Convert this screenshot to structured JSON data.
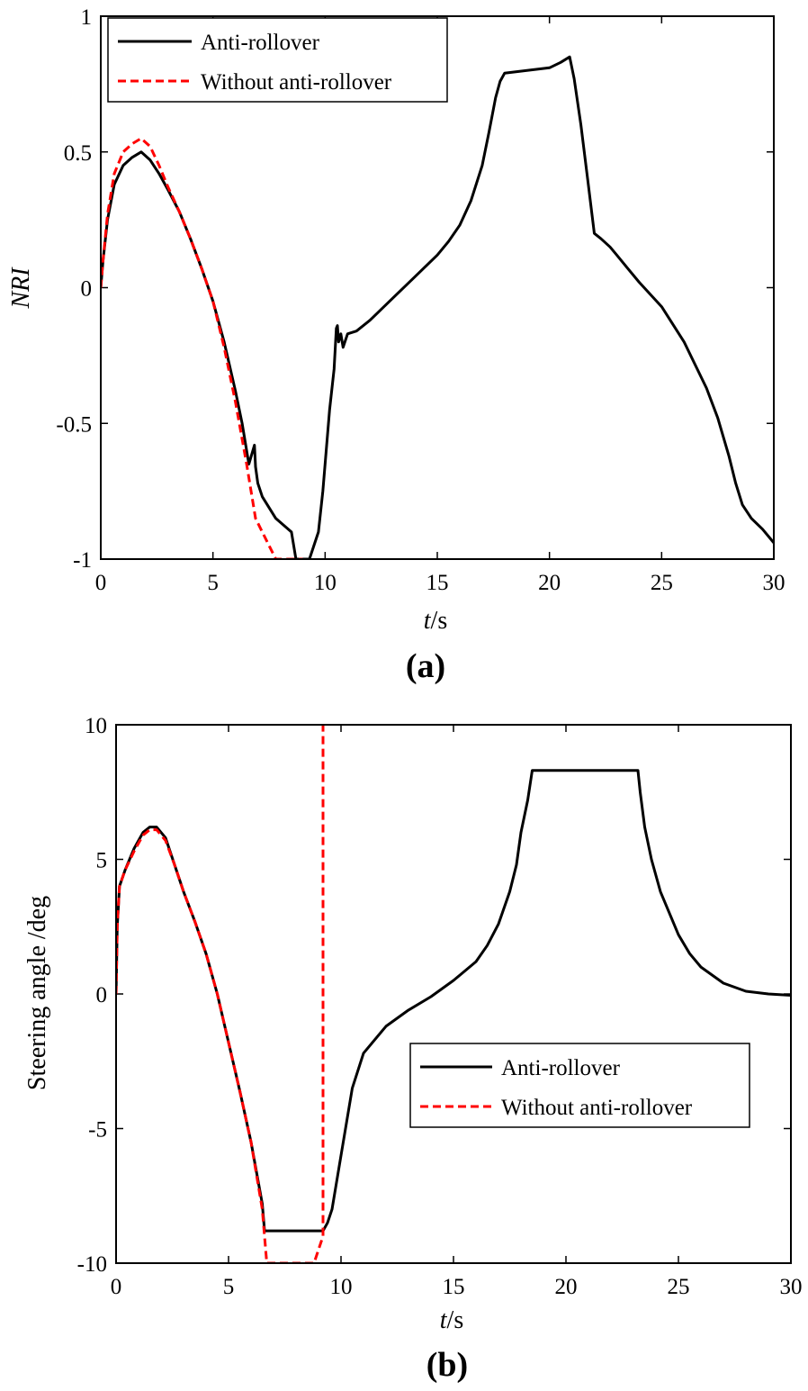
{
  "chart_data": [
    {
      "type": "line",
      "panel_label": "(a)",
      "xlabel": {
        "italic": "t",
        "rest": "/s"
      },
      "ylabel": "NRI",
      "xlim": [
        0,
        30
      ],
      "ylim": [
        -1,
        1
      ],
      "xticks": [
        "0",
        "5",
        "10",
        "15",
        "20",
        "25",
        "30"
      ],
      "yticks": [
        "-1",
        "-0.5",
        "0",
        "0.5",
        "1"
      ],
      "legend_position": "top-left",
      "series": [
        {
          "name": "Anti-rollover",
          "color": "#000000",
          "style": "solid",
          "x": [
            0,
            0.1,
            0.3,
            0.6,
            1.0,
            1.4,
            1.8,
            2.2,
            2.6,
            3.0,
            3.5,
            4.0,
            4.5,
            5.0,
            5.5,
            6.0,
            6.3,
            6.6,
            6.85,
            6.9,
            7.0,
            7.2,
            7.8,
            8.5,
            8.7,
            9.3,
            9.7,
            9.9,
            10.2,
            10.4,
            10.5,
            10.55,
            10.6,
            10.7,
            10.8,
            11.0,
            11.4,
            12.0,
            13.0,
            14.0,
            15.0,
            15.5,
            16.0,
            16.5,
            17.0,
            17.3,
            17.6,
            17.8,
            18.0,
            19.0,
            20.0,
            20.5,
            20.9,
            21.1,
            21.4,
            21.7,
            22.0,
            22.3,
            22.7,
            23.0,
            23.5,
            24.0,
            25.0,
            26.0,
            27.0,
            27.5,
            28.0,
            28.3,
            28.6,
            29.0,
            29.5,
            30.0
          ],
          "y": [
            0.0,
            0.1,
            0.25,
            0.38,
            0.45,
            0.48,
            0.5,
            0.47,
            0.42,
            0.36,
            0.28,
            0.18,
            0.07,
            -0.05,
            -0.2,
            -0.38,
            -0.5,
            -0.65,
            -0.58,
            -0.66,
            -0.72,
            -0.77,
            -0.85,
            -0.9,
            -1.0,
            -1.0,
            -0.9,
            -0.75,
            -0.45,
            -0.3,
            -0.15,
            -0.14,
            -0.2,
            -0.17,
            -0.22,
            -0.17,
            -0.16,
            -0.12,
            -0.04,
            0.04,
            0.12,
            0.17,
            0.23,
            0.32,
            0.45,
            0.57,
            0.7,
            0.76,
            0.79,
            0.8,
            0.81,
            0.83,
            0.85,
            0.77,
            0.6,
            0.4,
            0.2,
            0.18,
            0.15,
            0.12,
            0.07,
            0.02,
            -0.07,
            -0.2,
            -0.37,
            -0.48,
            -0.62,
            -0.72,
            -0.8,
            -0.85,
            -0.89,
            -0.94
          ]
        },
        {
          "name": "Without anti-rollover",
          "color": "#ff0000",
          "style": "dashed",
          "x": [
            0,
            0.1,
            0.3,
            0.6,
            1.0,
            1.4,
            1.8,
            2.2,
            2.6,
            3.0,
            3.5,
            4.0,
            4.5,
            5.0,
            5.5,
            6.0,
            6.5,
            6.9,
            7.2,
            7.5,
            7.8,
            8.5,
            9.0
          ],
          "y": [
            0.0,
            0.1,
            0.27,
            0.42,
            0.5,
            0.53,
            0.55,
            0.52,
            0.45,
            0.37,
            0.28,
            0.18,
            0.07,
            -0.05,
            -0.22,
            -0.42,
            -0.65,
            -0.85,
            -0.9,
            -0.95,
            -1.0,
            -1.0,
            -1.0
          ]
        }
      ]
    },
    {
      "type": "line",
      "panel_label": "(b)",
      "xlabel": {
        "italic": "t",
        "rest": "/s"
      },
      "ylabel": "Steering angle /deg",
      "xlim": [
        0,
        30
      ],
      "ylim": [
        -10,
        10
      ],
      "xticks": [
        "0",
        "5",
        "10",
        "15",
        "20",
        "25",
        "30"
      ],
      "yticks": [
        "-10",
        "-5",
        "0",
        "5",
        "10"
      ],
      "legend_position": "center-right",
      "series": [
        {
          "name": "Anti-rollover",
          "color": "#000000",
          "style": "solid",
          "x": [
            0,
            0.05,
            0.15,
            0.4,
            0.8,
            1.2,
            1.5,
            1.8,
            2.2,
            2.6,
            3.0,
            3.5,
            4.0,
            4.5,
            5.0,
            5.5,
            6.0,
            6.5,
            6.6,
            7.5,
            8.5,
            9.2,
            9.4,
            9.6,
            10.0,
            10.5,
            11.0,
            12.0,
            13.0,
            14.0,
            15.0,
            16.0,
            16.5,
            17.0,
            17.5,
            17.8,
            18.0,
            18.3,
            18.5,
            20.0,
            21.0,
            22.0,
            23.2,
            23.3,
            23.5,
            23.8,
            24.2,
            24.6,
            25.0,
            25.5,
            26.0,
            27.0,
            28.0,
            29.0,
            30.0
          ],
          "y": [
            0.0,
            2.5,
            4.0,
            4.6,
            5.4,
            6.0,
            6.2,
            6.2,
            5.8,
            4.8,
            3.8,
            2.7,
            1.5,
            0.0,
            -1.8,
            -3.6,
            -5.5,
            -7.8,
            -8.8,
            -8.8,
            -8.8,
            -8.8,
            -8.5,
            -8.0,
            -6.0,
            -3.5,
            -2.2,
            -1.2,
            -0.6,
            -0.1,
            0.5,
            1.2,
            1.8,
            2.6,
            3.8,
            4.8,
            6.0,
            7.2,
            8.3,
            8.3,
            8.3,
            8.3,
            8.3,
            7.5,
            6.2,
            5.0,
            3.8,
            3.0,
            2.2,
            1.5,
            1.0,
            0.4,
            0.1,
            0.0,
            -0.05
          ]
        },
        {
          "name": "Without anti-rollover",
          "color": "#ff0000",
          "style": "dashed",
          "x": [
            0,
            0.05,
            0.15,
            0.4,
            0.8,
            1.2,
            1.5,
            1.8,
            2.2,
            2.6,
            3.0,
            3.5,
            4.0,
            4.5,
            5.0,
            5.5,
            6.0,
            6.5,
            6.7,
            7.5,
            8.5,
            8.8,
            9.0,
            9.2,
            9.2
          ],
          "y": [
            0.0,
            2.5,
            4.0,
            4.6,
            5.3,
            5.9,
            6.1,
            6.1,
            5.7,
            4.8,
            3.8,
            2.7,
            1.5,
            0.0,
            -1.8,
            -3.6,
            -5.5,
            -8.0,
            -10.0,
            -10.0,
            -10.0,
            -10.0,
            -9.5,
            -9.0,
            10.0
          ]
        }
      ]
    }
  ]
}
